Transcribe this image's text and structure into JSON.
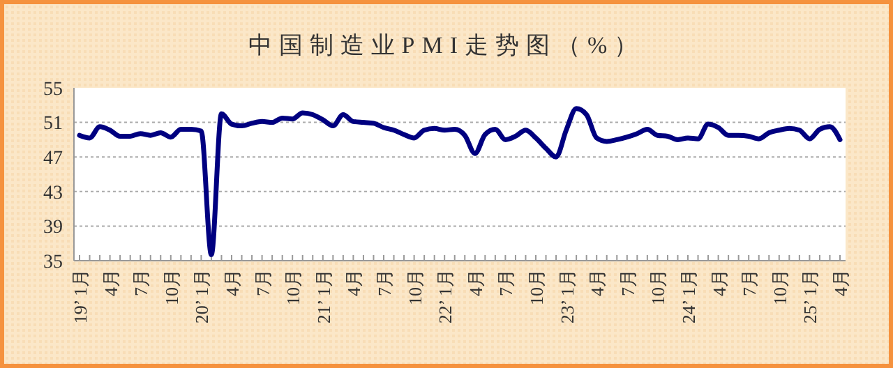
{
  "chart_data": {
    "type": "line",
    "title": "中国制造业PMI走势图（%）",
    "categories": [
      "19’ 1月",
      null,
      null,
      "4月",
      null,
      null,
      "7月",
      null,
      null,
      "10月",
      null,
      null,
      "20’ 1月",
      null,
      null,
      "4月",
      null,
      null,
      "7月",
      null,
      null,
      "10月",
      null,
      null,
      "21’ 1月",
      null,
      null,
      "4月",
      null,
      null,
      "7月",
      null,
      null,
      "10月",
      null,
      null,
      "22’ 1月",
      null,
      null,
      "4月",
      null,
      null,
      "7月",
      null,
      null,
      "10月",
      null,
      null,
      "23’ 1月",
      null,
      null,
      "4月",
      null,
      null,
      "7月",
      null,
      null,
      "10月",
      null,
      null,
      "24’ 1月",
      null,
      null,
      "4月",
      null,
      null,
      "7月",
      null,
      null,
      "10月",
      null,
      null,
      "25’ 1月",
      null,
      null,
      "4月"
    ],
    "series": [
      {
        "color": "#000080",
        "values": [
          49.5,
          49.2,
          50.5,
          50.1,
          49.4,
          49.4,
          49.7,
          49.5,
          49.8,
          49.3,
          50.2,
          50.2,
          50.0,
          35.7,
          52.0,
          50.8,
          50.6,
          50.9,
          51.1,
          51.0,
          51.5,
          51.4,
          52.1,
          51.9,
          51.3,
          50.6,
          51.9,
          51.1,
          51.0,
          50.9,
          50.4,
          50.1,
          49.6,
          49.2,
          50.1,
          50.3,
          50.1,
          50.2,
          49.5,
          47.4,
          49.6,
          50.2,
          49.0,
          49.4,
          50.1,
          49.2,
          48.0,
          47.0,
          50.1,
          52.6,
          51.9,
          49.2,
          48.8,
          49.0,
          49.3,
          49.7,
          50.2,
          49.5,
          49.4,
          49.0,
          49.2,
          49.1,
          50.8,
          50.4,
          49.5,
          49.5,
          49.4,
          49.1,
          49.8,
          50.1,
          50.3,
          50.1,
          49.1,
          50.2,
          50.5,
          49.0
        ]
      }
    ],
    "ylim": [
      35,
      55
    ],
    "yticks": [
      35,
      39,
      43,
      47,
      51,
      55
    ],
    "grid": "y",
    "line_style": "solid",
    "marker": "none"
  }
}
